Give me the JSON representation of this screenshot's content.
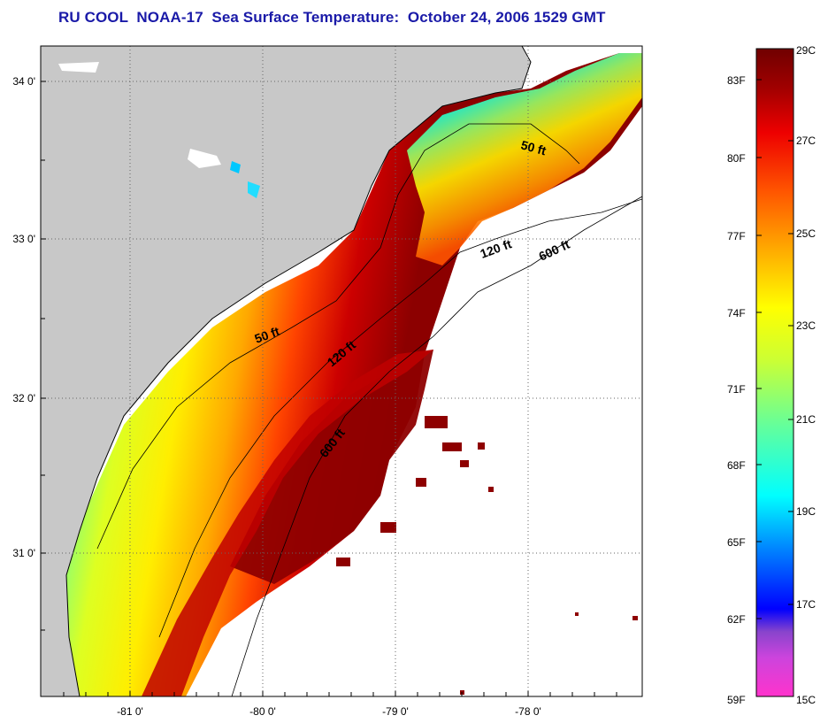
{
  "title": "RU COOL  NOAA-17  Sea Surface Temperature:  October 24, 2006 1529 GMT",
  "map": {
    "lon_range": [
      -81.7,
      -77.2
    ],
    "lat_range": [
      30.05,
      34.2
    ],
    "lon_ticks": [
      "-81 0'",
      "-80 0'",
      "-79 0'",
      "-78 0'"
    ],
    "lat_ticks": [
      "34 0'",
      "33 0'",
      "32 0'",
      "31 0'"
    ],
    "grid": "dotted",
    "contour_labels": [
      "50 ft",
      "120 ft",
      "600 ft",
      "50 ft",
      "120 ft",
      "600 ft"
    ],
    "colors": {
      "land": "#c8c8c8",
      "no_data": "#ffffff",
      "coastline": "#000000",
      "contour": "#000000"
    }
  },
  "colorbar": {
    "range_c": [
      15,
      29
    ],
    "celsius_labels": [
      "29C",
      "27C",
      "25C",
      "23C",
      "21C",
      "19C",
      "17C",
      "15C"
    ],
    "fahrenheit_labels": [
      "83F",
      "80F",
      "77F",
      "74F",
      "71F",
      "68F",
      "65F",
      "62F",
      "59F"
    ],
    "colors": [
      "#ff33cc",
      "#8844cc",
      "#0000ff",
      "#0088ff",
      "#00ffff",
      "#66ff99",
      "#ccff33",
      "#ffff00",
      "#ffaa00",
      "#ff5500",
      "#ee0000",
      "#a00000",
      "#700000"
    ]
  }
}
